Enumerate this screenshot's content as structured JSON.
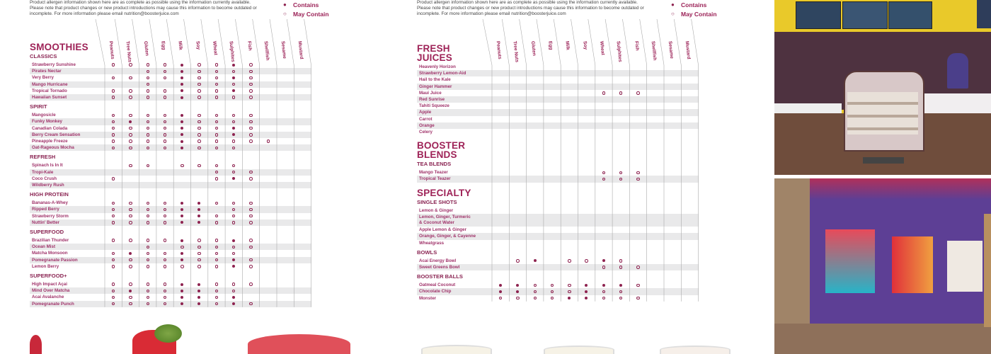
{
  "disclaimer": [
    "Product allergen information shown here are as complete as possible using the information currently available.",
    "Please note that product changes or new product introductions may cause this information to become outdated or",
    "incomplete. For more information please email  nutrition@boosterjuice.com"
  ],
  "legend": {
    "contains": "Contains",
    "may_contain": "May Contain",
    "contains_symbol": "●",
    "may_symbol": "○"
  },
  "allergens": [
    "Peanuts",
    "Tree Nuts",
    "Gluten",
    "Egg",
    "Milk",
    "Soy",
    "Wheat",
    "Sulphites",
    "Fish",
    "Shellfish",
    "Sesame",
    "Mustard"
  ],
  "key": {
    "x": "contains",
    "o": "may contain",
    "-": "none"
  },
  "colors": {
    "accent": "#9e2257",
    "dot": "#8e2350",
    "shade": "#e9e9ea"
  },
  "left_sheet": {
    "blocks": [
      {
        "type": "title",
        "lines": [
          "SMOOTHIES"
        ]
      },
      {
        "type": "sub",
        "text": "CLASSICS"
      },
      {
        "type": "row",
        "name": "Strawberry Sunshine",
        "a": "ooooxooxo---"
      },
      {
        "type": "row",
        "name": "Pirates Nectar",
        "a": "--ooxoooo---"
      },
      {
        "type": "row",
        "name": "Very Berry",
        "a": "ooooxooxo---"
      },
      {
        "type": "row",
        "name": "Mango Hurricane",
        "a": "--o-xoooo---"
      },
      {
        "type": "row",
        "name": "Tropical Tornado",
        "a": "ooooxooxo---"
      },
      {
        "type": "row",
        "name": "Hawaiian Sunset",
        "a": "ooooxoooo---"
      },
      {
        "type": "sub",
        "text": "SPIRIT"
      },
      {
        "type": "row",
        "name": "Mangosicle",
        "a": "ooooxoooo---"
      },
      {
        "type": "row",
        "name": "Funky Monkey",
        "a": "oxooxoooo---"
      },
      {
        "type": "row",
        "name": "Canadian Colada",
        "a": "ooooxooxo---"
      },
      {
        "type": "row",
        "name": "Berry Cream Sensation",
        "a": "ooooxooxo---"
      },
      {
        "type": "row",
        "name": "Pineapple Freeze",
        "a": "ooooxooooo--"
      },
      {
        "type": "row",
        "name": "Oat-Rageous Mocha",
        "a": "ooooxooo----"
      },
      {
        "type": "sub",
        "text": "REFRESH"
      },
      {
        "type": "row",
        "name": "Spinach Is In It",
        "a": "-oo-oooo----"
      },
      {
        "type": "row",
        "name": "Tropi-Kale",
        "a": "------ooo---"
      },
      {
        "type": "row",
        "name": "Coco Crush",
        "a": "o-----oxo---"
      },
      {
        "type": "row",
        "name": "Wildberry Rush",
        "a": "------------"
      },
      {
        "type": "sub",
        "text": "HIGH PROTEIN"
      },
      {
        "type": "row",
        "name": "Bananas-A-Whey",
        "a": "ooooxxooo---"
      },
      {
        "type": "row",
        "name": "Ripped Berry",
        "a": "ooooxx-oo---"
      },
      {
        "type": "row",
        "name": "Strawberry Storm",
        "a": "ooooxxooo---"
      },
      {
        "type": "row",
        "name": "Nuttin' Better",
        "a": "ooooxxooo---"
      },
      {
        "type": "sub",
        "text": "SUPERFOOD"
      },
      {
        "type": "row",
        "name": "Brazilian Thunder",
        "a": "ooooxooxo---"
      },
      {
        "type": "row",
        "name": "Ocean Mist",
        "a": "--o-ooooo---"
      },
      {
        "type": "row",
        "name": "Matcha Monsoon",
        "a": "oxooxooo----"
      },
      {
        "type": "row",
        "name": "Pomegranate Passion",
        "a": "ooooxooxo---"
      },
      {
        "type": "row",
        "name": "Lemon Berry",
        "a": "oooooooxo---"
      },
      {
        "type": "sub",
        "text": "SUPERFOOD+"
      },
      {
        "type": "row",
        "name": "High Impact Açai",
        "a": "ooooxxooo---"
      },
      {
        "type": "row",
        "name": "Mind Over Matcha",
        "a": "oxooxxoo----"
      },
      {
        "type": "row",
        "name": "Acai Avalanche",
        "a": "ooooxxox----"
      },
      {
        "type": "row",
        "name": "Pomegranate Punch",
        "a": "ooooxxoxo---"
      }
    ]
  },
  "right_sheet": {
    "blocks": [
      {
        "type": "title",
        "lines": [
          "FRESH",
          "JUICES"
        ]
      },
      {
        "type": "row",
        "name": "Heavenly Horizon",
        "a": "------------"
      },
      {
        "type": "row",
        "name": "Strawberry Lemon-Aid",
        "a": "------------"
      },
      {
        "type": "row",
        "name": "Hail to the Kale",
        "a": "------------"
      },
      {
        "type": "row",
        "name": "Ginger Hammer",
        "a": "------------"
      },
      {
        "type": "row",
        "name": "Maui Juice",
        "a": "------ooo---"
      },
      {
        "type": "row",
        "name": "Red Sunrise",
        "a": "------------"
      },
      {
        "type": "row",
        "name": "Tahiti Squeeze",
        "a": "------------"
      },
      {
        "type": "row",
        "name": "Apple",
        "a": "------------"
      },
      {
        "type": "row",
        "name": "Carrot",
        "a": "------------"
      },
      {
        "type": "row",
        "name": "Orange",
        "a": "------------"
      },
      {
        "type": "row",
        "name": "Celery",
        "a": "------------"
      },
      {
        "type": "title",
        "lines": [
          "BOOSTER",
          "BLENDS"
        ]
      },
      {
        "type": "sub",
        "text": "TEA BLENDS"
      },
      {
        "type": "row",
        "name": "Mango Teazer",
        "a": "------ooo---"
      },
      {
        "type": "row",
        "name": "Tropical Teazer",
        "a": "------ooo---"
      },
      {
        "type": "title",
        "lines": [
          "SPECIALTY"
        ]
      },
      {
        "type": "sub",
        "text": "SINGLE SHOTS"
      },
      {
        "type": "row",
        "name": "Lemon & Ginger",
        "a": "------------"
      },
      {
        "type": "row",
        "name": "Lemon, Ginger, Turmeric",
        "name2": "& Coconut Water",
        "a": "------------"
      },
      {
        "type": "row",
        "name": "Apple Lemon & Ginger",
        "a": "------------"
      },
      {
        "type": "row",
        "name": "Orange, Ginger, & Cayenne",
        "a": "------------"
      },
      {
        "type": "row",
        "name": "Wheatgrass",
        "a": "------------"
      },
      {
        "type": "sub",
        "text": "BOWLS"
      },
      {
        "type": "row",
        "name": "Acai Energy Bowl",
        "a": "-ox-ooxo----"
      },
      {
        "type": "row",
        "name": "Sweet Greens Bowl",
        "a": "------ooo---"
      },
      {
        "type": "sub",
        "text": "BOOSTER BALLS"
      },
      {
        "type": "row",
        "name": "Oatmeal Coconut",
        "a": "xxoooxxxo---"
      },
      {
        "type": "row",
        "name": "Chocolate Chip",
        "a": "xxoooxoo----"
      },
      {
        "type": "row",
        "name": "Monster",
        "a": "ooooxxooo---"
      }
    ]
  }
}
